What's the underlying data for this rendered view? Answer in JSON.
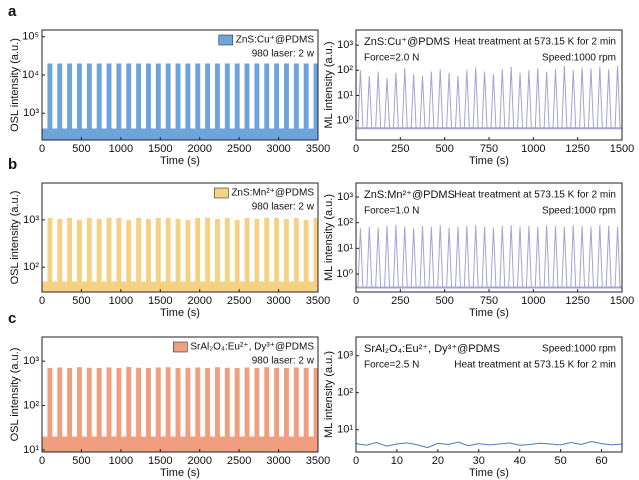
{
  "chart_data": [
    {
      "type": "pulse",
      "panel_label": "a",
      "series": [
        {
          "name": "ZnS:Cu⁺@PDMS",
          "color": "#6fa3dc",
          "base": 400,
          "x": [
            100,
            225,
            350,
            475,
            600,
            725,
            850,
            975,
            1100,
            1225,
            1350,
            1475,
            1600,
            1725,
            1850,
            1975,
            2100,
            2225,
            2350,
            2475,
            2600,
            2725,
            2850,
            2975,
            3100,
            3225,
            3350,
            3475
          ],
          "values": [
            20000,
            20000,
            20000,
            20000,
            20000,
            20000,
            20000,
            20000,
            20000,
            20000,
            20000,
            20000,
            20000,
            20000,
            20000,
            20000,
            20000,
            20000,
            20000,
            20000,
            20000,
            20000,
            20000,
            20000,
            20000,
            20000,
            20000,
            20000
          ]
        }
      ],
      "legend_swatch": true,
      "annotations": [
        "980 laser: 2 w"
      ],
      "xlim": [
        0,
        3500
      ],
      "xticks": [
        0,
        500,
        1000,
        1500,
        2000,
        2500,
        3000,
        3500
      ],
      "ylim": [
        200,
        150000
      ],
      "yticks": [
        {
          "value": 1000,
          "label": "10³"
        },
        {
          "value": 10000,
          "label": "10⁴"
        },
        {
          "value": 100000,
          "label": "10⁵"
        }
      ],
      "log_y": true,
      "xlabel": "Time (s)",
      "ylabel": "OSL intensity (a.u.)"
    },
    {
      "type": "spike",
      "series": [
        {
          "name": "ZnS:Cu⁺@PDMS",
          "color": "#a3a3d6",
          "base": 0.5,
          "x": [
            25,
            75,
            125,
            175,
            225,
            275,
            325,
            375,
            425,
            475,
            525,
            575,
            625,
            675,
            725,
            775,
            825,
            875,
            925,
            975,
            1025,
            1075,
            1125,
            1175,
            1225,
            1275,
            1325,
            1375,
            1425,
            1475
          ],
          "values": [
            100,
            60,
            90,
            50,
            80,
            120,
            70,
            60,
            90,
            110,
            80,
            60,
            100,
            130,
            90,
            70,
            110,
            140,
            80,
            100,
            120,
            90,
            110,
            150,
            100,
            130,
            120,
            140,
            110,
            150
          ]
        }
      ],
      "legend_swatch": false,
      "annotations": [
        "Heat treatment at 573.15 K for 2 min",
        "Force=2.0 N",
        "Speed:1000 rpm"
      ],
      "xlim": [
        0,
        1500
      ],
      "xticks": [
        0,
        250,
        500,
        750,
        1000,
        1250,
        1500
      ],
      "ylim": [
        0.17,
        4000
      ],
      "yticks": [
        {
          "value": 1,
          "label": "10⁰"
        },
        {
          "value": 10,
          "label": "10¹"
        },
        {
          "value": 100,
          "label": "10²"
        },
        {
          "value": 1000,
          "label": "10³"
        }
      ],
      "log_y": true,
      "xlabel": "Time (s)",
      "ylabel": "ML intensity (a.u.)"
    },
    {
      "type": "pulse",
      "panel_label": "b",
      "series": [
        {
          "name": "ZnS:Mn²⁺@PDMS",
          "color": "#f5d283",
          "base": 50,
          "x": [
            100,
            225,
            350,
            475,
            600,
            725,
            850,
            975,
            1100,
            1225,
            1350,
            1475,
            1600,
            1725,
            1850,
            1975,
            2100,
            2225,
            2350,
            2475,
            2600,
            2725,
            2850,
            2975,
            3100,
            3225,
            3350,
            3475
          ],
          "values": [
            1100,
            1050,
            1100,
            1000,
            1100,
            1050,
            1100,
            1100,
            1000,
            1100,
            1050,
            1100,
            1100,
            1050,
            1000,
            1100,
            1100,
            1050,
            1100,
            1000,
            1100,
            1050,
            1100,
            1100,
            1050,
            1100,
            1000,
            1100
          ]
        }
      ],
      "legend_swatch": true,
      "annotations": [
        "980 laser: 2 w"
      ],
      "xlim": [
        0,
        3500
      ],
      "xticks": [
        0,
        500,
        1000,
        1500,
        2000,
        2500,
        3000,
        3500
      ],
      "ylim": [
        30,
        6000
      ],
      "yticks": [
        {
          "value": 100,
          "label": "10²"
        },
        {
          "value": 1000,
          "label": "10³"
        }
      ],
      "log_y": true,
      "xlabel": "Time (s)",
      "ylabel": "OSL intensity (a.u.)"
    },
    {
      "type": "spike",
      "series": [
        {
          "name": "ZnS:Mn²⁺@PDMS",
          "color": "#a3a3d6",
          "base": 0.3,
          "x": [
            25,
            75,
            125,
            175,
            225,
            275,
            325,
            375,
            425,
            475,
            525,
            575,
            625,
            675,
            725,
            775,
            825,
            875,
            925,
            975,
            1025,
            1075,
            1125,
            1175,
            1225,
            1275,
            1325,
            1375,
            1425,
            1475
          ],
          "values": [
            60,
            70,
            65,
            75,
            80,
            70,
            60,
            75,
            70,
            80,
            65,
            70,
            75,
            80,
            70,
            65,
            75,
            80,
            70,
            75,
            70,
            80,
            75,
            70,
            80,
            75,
            70,
            80,
            75,
            70
          ]
        }
      ],
      "legend_swatch": false,
      "annotations": [
        "Heat treatment at 573.15 K for 2 min",
        "Force=1.0 N",
        "Speed:1000 rpm"
      ],
      "xlim": [
        0,
        1500
      ],
      "xticks": [
        0,
        250,
        500,
        750,
        1000,
        1250,
        1500
      ],
      "ylim": [
        0.2,
        3500
      ],
      "yticks": [
        {
          "value": 1,
          "label": "10⁰"
        },
        {
          "value": 10,
          "label": "10¹"
        },
        {
          "value": 100,
          "label": "10²"
        },
        {
          "value": 1000,
          "label": "10³"
        }
      ],
      "log_y": true,
      "xlabel": "Time (s)",
      "ylabel": "ML intensity (a.u.)"
    },
    {
      "type": "pulse",
      "panel_label": "c",
      "series": [
        {
          "name": "SrAl₂O₄:Eu²⁺, Dy³⁺@PDMS",
          "color": "#ef9f7f",
          "base": 20,
          "x": [
            100,
            225,
            350,
            475,
            600,
            725,
            850,
            975,
            1100,
            1225,
            1350,
            1475,
            1600,
            1725,
            1850,
            1975,
            2100,
            2225,
            2350,
            2475,
            2600,
            2725,
            2850,
            2975,
            3100,
            3225,
            3350,
            3475
          ],
          "values": [
            700,
            720,
            700,
            730,
            710,
            700,
            720,
            700,
            740,
            710,
            700,
            720,
            730,
            700,
            710,
            720,
            700,
            730,
            710,
            700,
            720,
            700,
            730,
            710,
            700,
            720,
            710,
            700
          ]
        }
      ],
      "legend_swatch": true,
      "annotations": [
        "980 laser: 2 w"
      ],
      "xlim": [
        0,
        3500
      ],
      "xticks": [
        0,
        500,
        1000,
        1500,
        2000,
        2500,
        3000,
        3500
      ],
      "ylim": [
        9,
        3500
      ],
      "yticks": [
        {
          "value": 10,
          "label": "10¹"
        },
        {
          "value": 100,
          "label": "10²"
        },
        {
          "value": 1000,
          "label": "10³"
        }
      ],
      "log_y": true,
      "xlabel": "Time (s)",
      "ylabel": "OSL intensity (a.u.)"
    },
    {
      "type": "line",
      "series": [
        {
          "name": "SrAl₂O₄:Eu²⁺, Dy³⁺@PDMS",
          "color": "#4f78bd",
          "x": [
            0,
            2.5,
            5,
            7.5,
            10,
            12.5,
            15,
            17.5,
            20,
            22.5,
            25,
            27.5,
            30,
            32.5,
            35,
            37.5,
            40,
            42.5,
            45,
            47.5,
            50,
            52.5,
            55,
            57.5,
            60,
            62.5,
            65
          ],
          "values": [
            4.2,
            3.8,
            4.5,
            3.6,
            4.1,
            4.4,
            3.9,
            3.3,
            4.3,
            4.0,
            4.6,
            3.7,
            4.2,
            3.9,
            4.1,
            4.4,
            3.8,
            4.0,
            4.3,
            4.1,
            3.9,
            4.5,
            4.0,
            4.8,
            4.2,
            3.9,
            4.1
          ]
        }
      ],
      "legend_swatch": false,
      "annotations": [
        "Speed:1000 rpm",
        "Force=2.5 N",
        "Heat treatment at 573.15 K for 2 min"
      ],
      "xlim": [
        0,
        65
      ],
      "xticks": [
        0,
        10,
        20,
        30,
        40,
        50,
        60
      ],
      "ylim": [
        2.5,
        3200
      ],
      "yticks": [
        {
          "value": 10,
          "label": "10¹"
        },
        {
          "value": 100,
          "label": "10²"
        },
        {
          "value": 1000,
          "label": "10³"
        }
      ],
      "log_y": true,
      "xlabel": "Time (s)",
      "ylabel": "ML intensity (a.u.)"
    }
  ]
}
